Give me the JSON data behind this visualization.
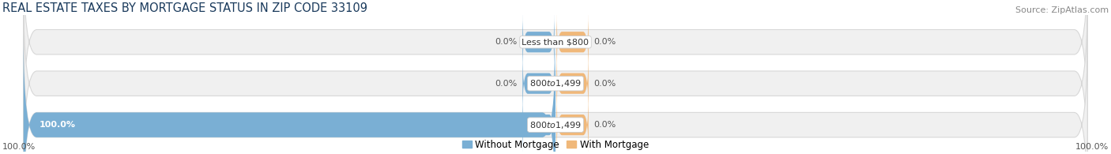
{
  "title": "REAL ESTATE TAXES BY MORTGAGE STATUS IN ZIP CODE 33109",
  "source": "Source: ZipAtlas.com",
  "rows": [
    {
      "label": "Less than $800",
      "without_mortgage": 0.0,
      "with_mortgage": 0.0
    },
    {
      "label": "$800 to $1,499",
      "without_mortgage": 0.0,
      "with_mortgage": 0.0
    },
    {
      "label": "$800 to $1,499",
      "without_mortgage": 100.0,
      "with_mortgage": 0.0
    }
  ],
  "color_without": "#7aafd4",
  "color_with": "#f0b87a",
  "bar_bg_facecolor": "#f0f0f0",
  "bar_bg_edgecolor": "#d8d8d8",
  "xlim_left": -100,
  "xlim_right": 100,
  "left_axis_label": "100.0%",
  "right_axis_label": "100.0%",
  "legend_without": "Without Mortgage",
  "legend_with": "With Mortgage",
  "title_fontsize": 10.5,
  "source_fontsize": 8,
  "bar_label_fontsize": 8,
  "pct_fontsize": 8,
  "legend_fontsize": 8.5,
  "axis_label_fontsize": 8
}
